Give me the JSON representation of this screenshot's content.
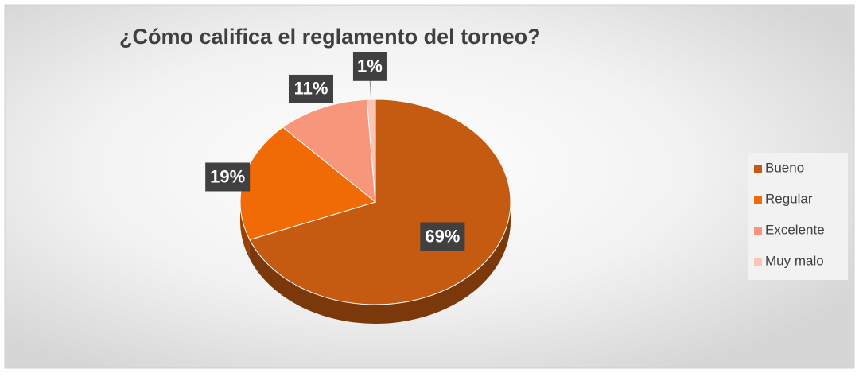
{
  "chart_data": {
    "type": "pie",
    "title": "¿Cómo califica el reglamento del torneo?",
    "categories": [
      "Bueno",
      "Regular",
      "Excelente",
      "Muy malo"
    ],
    "values": [
      69,
      19,
      11,
      1
    ],
    "value_labels": [
      "69%",
      "19%",
      "11%",
      "1%"
    ],
    "colors": [
      "#c55a11",
      "#f06b06",
      "#f8967b",
      "#f9c6b6"
    ],
    "legend": "right"
  }
}
